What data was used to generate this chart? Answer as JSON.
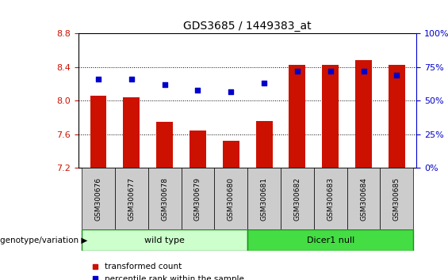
{
  "title": "GDS3685 / 1449383_at",
  "samples": [
    "GSM300676",
    "GSM300677",
    "GSM300678",
    "GSM300679",
    "GSM300680",
    "GSM300681",
    "GSM300682",
    "GSM300683",
    "GSM300684",
    "GSM300685"
  ],
  "transformed_counts": [
    8.06,
    8.04,
    7.75,
    7.65,
    7.52,
    7.76,
    8.43,
    8.43,
    8.48,
    8.43
  ],
  "percentile_ranks": [
    66,
    66,
    62,
    58,
    57,
    63,
    72,
    72,
    72,
    69
  ],
  "ylim_left": [
    7.2,
    8.8
  ],
  "ylim_right": [
    0,
    100
  ],
  "yticks_left": [
    7.2,
    7.6,
    8.0,
    8.4,
    8.8
  ],
  "yticks_right": [
    0,
    25,
    50,
    75,
    100
  ],
  "bar_color": "#cc1100",
  "dot_color": "#0000cc",
  "wild_type_indices": [
    0,
    1,
    2,
    3,
    4
  ],
  "dicer_null_indices": [
    5,
    6,
    7,
    8,
    9
  ],
  "wild_type_label": "wild type",
  "dicer_null_label": "Dicer1 null",
  "genotype_label": "genotype/variation",
  "legend_bar_label": "transformed count",
  "legend_dot_label": "percentile rank within the sample",
  "wild_type_color": "#ccffcc",
  "dicer_null_color": "#44dd44",
  "group_border": "#228822",
  "bar_width": 0.5,
  "right_axis_color": "#0000cc",
  "left_axis_color": "#cc1100",
  "tick_bg_color": "#cccccc",
  "plot_bg": "#ffffff"
}
